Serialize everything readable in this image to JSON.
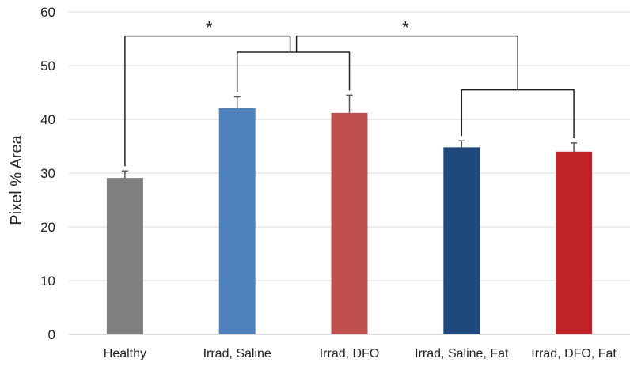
{
  "chart_data": {
    "type": "bar",
    "title": "",
    "xlabel": "",
    "ylabel": "Pixel % Area",
    "ylim": [
      0,
      60
    ],
    "yticks": [
      0,
      10,
      20,
      30,
      40,
      50,
      60
    ],
    "grid": true,
    "categories": [
      "Healthy",
      "Irrad, Saline",
      "Irrad, DFO",
      "Irrad, Saline, Fat",
      "Irrad, DFO, Fat"
    ],
    "values": [
      29.1,
      42.1,
      41.2,
      34.8,
      34.0
    ],
    "errors": [
      1.3,
      2.1,
      3.3,
      1.2,
      1.6
    ],
    "colors": [
      "#7f7f7f",
      "#4f81bd",
      "#c0504d",
      "#1f497d",
      "#c0222a"
    ],
    "significance": [
      {
        "label": "*",
        "between": [
          "Healthy",
          "Irrad, Saline / Irrad, DFO"
        ]
      },
      {
        "label": "*",
        "between": [
          "Irrad, Saline / Irrad, DFO",
          "Irrad, Saline, Fat / Irrad, DFO, Fat"
        ]
      }
    ]
  }
}
